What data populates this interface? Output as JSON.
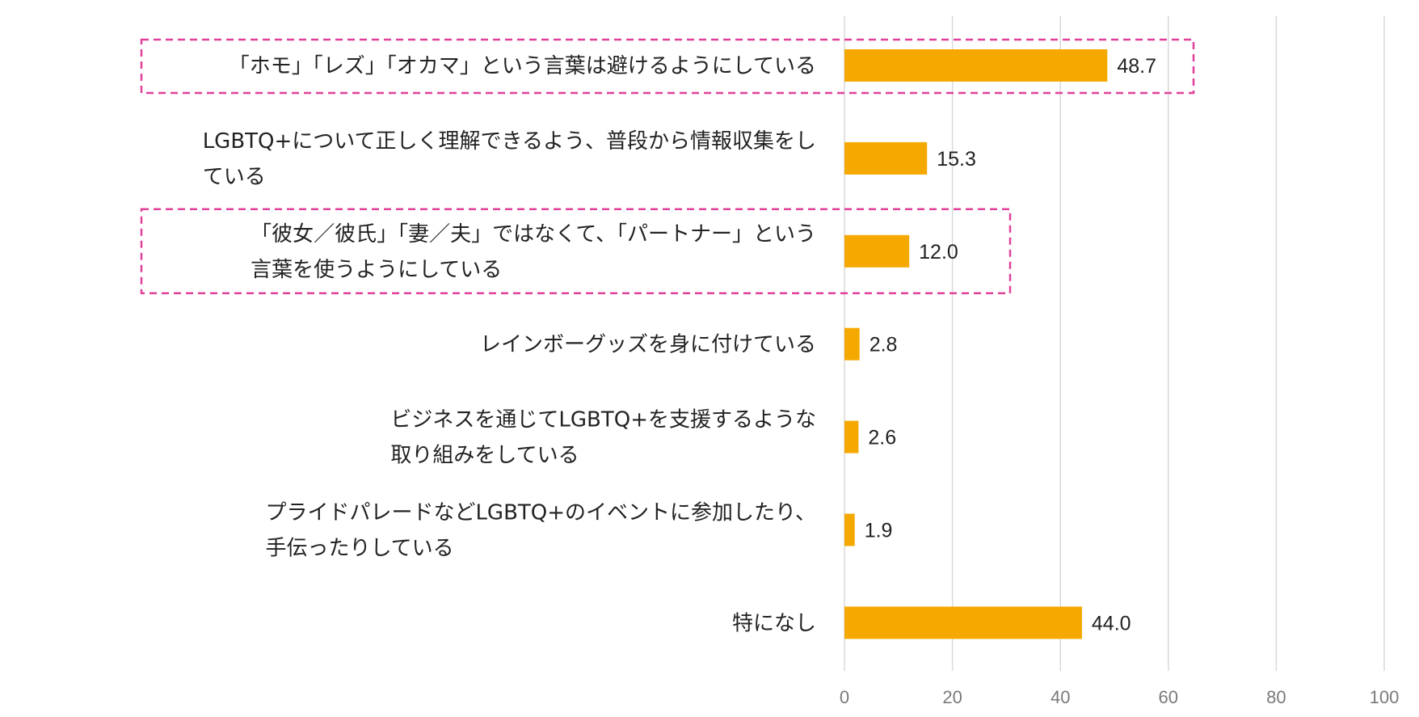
{
  "chart_data": {
    "type": "bar",
    "orientation": "horizontal",
    "categories": [
      [
        "「ホモ」「レズ」「オカマ」という言葉は避けるようにしている"
      ],
      [
        "LGBTQ+について正しく理解できるよう、普段から情報収集をし",
        "ている"
      ],
      [
        "「彼女／彼氏」「妻／夫」ではなくて、「パートナー」という",
        "言葉を使うようにしている"
      ],
      [
        "レインボーグッズを身に付けている"
      ],
      [
        "ビジネスを通じてLGBTQ+を支援するような",
        "取り組みをしている"
      ],
      [
        "プライドパレードなどLGBTQ+のイベントに参加したり、",
        "手伝ったりしている"
      ],
      [
        "特になし"
      ]
    ],
    "values": [
      48.7,
      15.3,
      12.0,
      2.8,
      2.6,
      1.9,
      44.0
    ],
    "value_labels": [
      "48.7",
      "15.3",
      "12.0",
      "2.8",
      "2.6",
      "1.9",
      "44.0"
    ],
    "xlim": [
      0,
      100
    ],
    "x_ticks": [
      "0",
      "20",
      "40",
      "60",
      "80",
      "100"
    ],
    "grid": true,
    "bar_color": "#F5A800",
    "highlighted_categories": [
      0,
      2
    ],
    "highlight_color": "#E0409A"
  }
}
